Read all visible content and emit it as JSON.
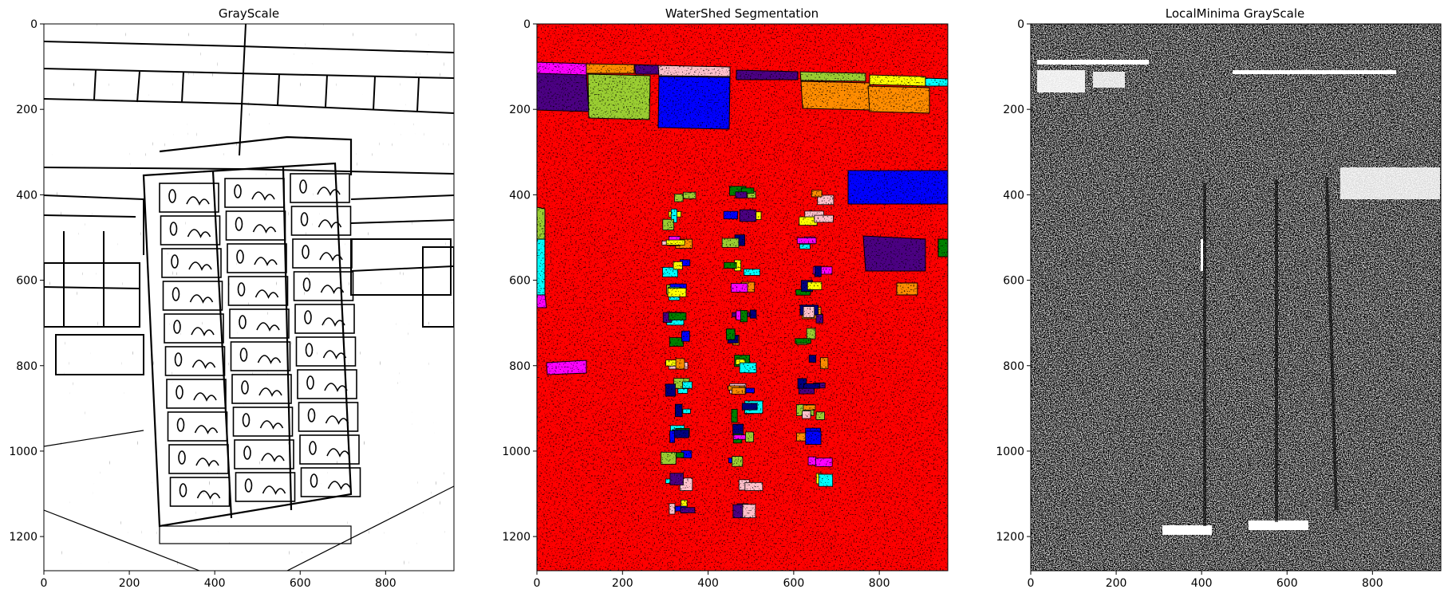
{
  "figure": {
    "panels": [
      {
        "id": "grayscale",
        "title": "GrayScale",
        "xticks": [
          "0",
          "200",
          "400",
          "600",
          "800"
        ],
        "yticks": [
          "0",
          "200",
          "400",
          "600",
          "800",
          "1000",
          "1200"
        ],
        "xlim": [
          0,
          960
        ],
        "ylim": [
          1280,
          0
        ],
        "style": "edge map: black strokes on white background"
      },
      {
        "id": "watershed",
        "title": "WaterShed Segmentation",
        "xticks": [
          "0",
          "200",
          "400",
          "600",
          "800"
        ],
        "yticks": [
          "0",
          "200",
          "400",
          "600",
          "800",
          "1000",
          "1200"
        ],
        "xlim": [
          0,
          960
        ],
        "ylim": [
          1280,
          0
        ],
        "style": "label map: red background with colored regions",
        "colors": {
          "background": "#ff0000",
          "regions": [
            "#4b0082",
            "#9acd32",
            "#0000ff",
            "#ff8c00",
            "#ffff00",
            "#00ffff",
            "#ff00ff",
            "#ffc0cb",
            "#008000",
            "#000080"
          ]
        }
      },
      {
        "id": "localminima",
        "title": "LocalMinima GrayScale",
        "xticks": [
          "0",
          "200",
          "400",
          "600",
          "800"
        ],
        "yticks": [
          "0",
          "200",
          "400",
          "600",
          "800",
          "1000",
          "1200"
        ],
        "xlim": [
          0,
          960
        ],
        "ylim": [
          1280,
          0
        ],
        "style": "texture map: white speckle on black background"
      }
    ]
  }
}
